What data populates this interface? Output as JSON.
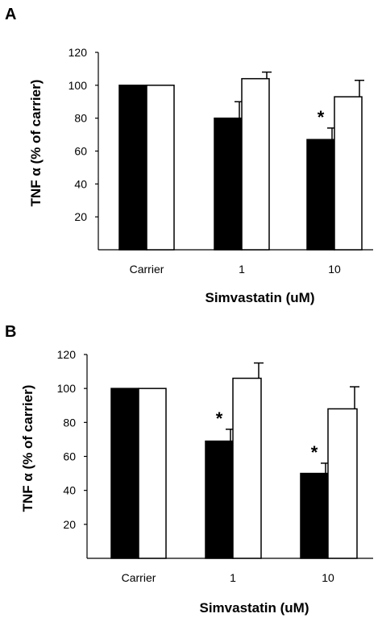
{
  "chart_data": [
    {
      "panel": "A",
      "type": "bar",
      "categories": [
        "Carrier",
        "1",
        "10"
      ],
      "series": [
        {
          "values": [
            100,
            80,
            67
          ],
          "errors": [
            0,
            10,
            7
          ],
          "fill": "#000000"
        },
        {
          "values": [
            100,
            104,
            93
          ],
          "errors": [
            0,
            4,
            10
          ],
          "fill": "#ffffff"
        }
      ],
      "significance": [
        null,
        null,
        "*"
      ],
      "xlabel": "Simvastatin (uM)",
      "ylabel": "TNF α (% of carrier)",
      "yticks": [
        "20",
        "40",
        "60",
        "80",
        "100",
        "120"
      ],
      "ylim": [
        0,
        120
      ],
      "grid": false
    },
    {
      "panel": "B",
      "type": "bar",
      "categories": [
        "Carrier",
        "1",
        "10"
      ],
      "series": [
        {
          "values": [
            100,
            69,
            50
          ],
          "errors": [
            0,
            7,
            6
          ],
          "fill": "#000000"
        },
        {
          "values": [
            100,
            106,
            88
          ],
          "errors": [
            0,
            9,
            13
          ],
          "fill": "#ffffff"
        }
      ],
      "significance": [
        null,
        "*",
        "*"
      ],
      "xlabel": "Simvastatin (uM)",
      "ylabel": "TNF α (% of carrier)",
      "yticks": [
        "20",
        "40",
        "60",
        "80",
        "100",
        "120"
      ],
      "ylim": [
        0,
        120
      ],
      "grid": false
    }
  ]
}
